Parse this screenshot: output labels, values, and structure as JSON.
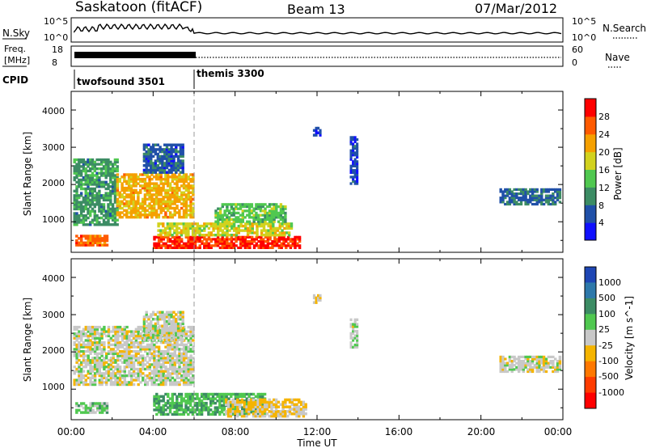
{
  "header": {
    "station": "Saskatoon (fitACF)",
    "beam": "Beam 13",
    "date": "07/Mar/2012"
  },
  "summary_panels": {
    "nsky_label": "N.Sky",
    "nsky_ticks": [
      "10^5",
      "10^0"
    ],
    "nsearch_label": "N.Search",
    "nsearch_ticks": [
      "10^5",
      "10^0"
    ],
    "freq_label_line1": "Freq.",
    "freq_label_line2": "[MHz]",
    "freq_ticks": [
      "18",
      "8"
    ],
    "nave_label": "Nave",
    "nave_ticks": [
      "60",
      "0"
    ],
    "cpid_label": "CPID",
    "cpid_modes": [
      {
        "name": "twofsound 3501",
        "start_hour": 0,
        "end_hour": 6
      },
      {
        "name": "themis 3300",
        "start_hour": 6,
        "end_hour": 24
      }
    ]
  },
  "axes": {
    "ylabel": "Slant Range [km]",
    "xlabel": "Time UT",
    "x_ticks": [
      "00:00",
      "04:00",
      "08:00",
      "12:00",
      "16:00",
      "20:00",
      "00:00"
    ],
    "y_ticks": [
      "1000",
      "2000",
      "3000",
      "4000"
    ]
  },
  "colorbars": {
    "power": {
      "label": "Power [dB]",
      "ticks": [
        "4",
        "8",
        "12",
        "16",
        "20",
        "24",
        "28"
      ],
      "colors": [
        "#1010ff",
        "#2050a8",
        "#3c8c64",
        "#50c850",
        "#d2d21e",
        "#f5a000",
        "#ff5a00",
        "#ff0000"
      ]
    },
    "velocity": {
      "label": "Velocity [m s^-1]",
      "ticks": [
        "1000",
        "500",
        "100",
        "25",
        "-25",
        "-100",
        "-500",
        "-1000"
      ],
      "colors": [
        "#1e46b4",
        "#2d78aa",
        "#3c8c64",
        "#50c850",
        "#c8c8c8",
        "#f5b400",
        "#ff7800",
        "#ff3c00",
        "#ff0000"
      ]
    }
  },
  "chart_data": [
    {
      "type": "heatmap",
      "title": "Power",
      "xlabel": "Time UT",
      "ylabel": "Slant Range [km]",
      "xlim_hours": [
        0,
        24
      ],
      "ylim_km": [
        180,
        4500
      ],
      "colorbar_range": [
        0,
        30
      ],
      "regions": [
        {
          "t0": 0.2,
          "t1": 1.8,
          "r0": 350,
          "r1": 650,
          "value": 24
        },
        {
          "t0": 0.1,
          "t1": 2.3,
          "r0": 900,
          "r1": 2700,
          "value": 10
        },
        {
          "t0": 2.2,
          "t1": 6.0,
          "r0": 1100,
          "r1": 2300,
          "value": 20
        },
        {
          "t0": 3.5,
          "t1": 5.5,
          "r0": 2300,
          "r1": 3100,
          "value": 6
        },
        {
          "t0": 4.0,
          "t1": 11.2,
          "r0": 280,
          "r1": 620,
          "value": 27
        },
        {
          "t0": 4.2,
          "t1": 10.8,
          "r0": 620,
          "r1": 980,
          "value": 17
        },
        {
          "t0": 7.0,
          "t1": 10.5,
          "r0": 980,
          "r1": 1500,
          "value": 13
        },
        {
          "t0": 11.8,
          "t1": 12.2,
          "r0": 3300,
          "r1": 3550,
          "value": 4
        },
        {
          "t0": 13.6,
          "t1": 14.0,
          "r0": 2000,
          "r1": 3300,
          "value": 5
        },
        {
          "t0": 20.9,
          "t1": 23.9,
          "r0": 1450,
          "r1": 1900,
          "value": 7
        }
      ]
    },
    {
      "type": "heatmap",
      "title": "Velocity",
      "xlabel": "Time UT",
      "ylabel": "Slant Range [km]",
      "xlim_hours": [
        0,
        24
      ],
      "ylim_km": [
        180,
        4500
      ],
      "colorbar_range": [
        -1000,
        1000
      ],
      "regions": [
        {
          "t0": 0.2,
          "t1": 1.8,
          "r0": 350,
          "r1": 650,
          "value": 200
        },
        {
          "t0": 0.1,
          "t1": 6.0,
          "r0": 1100,
          "r1": 2700,
          "value": 0
        },
        {
          "t0": 3.5,
          "t1": 5.5,
          "r0": 2300,
          "r1": 3100,
          "value": 0
        },
        {
          "t0": 4.0,
          "t1": 9.5,
          "r0": 300,
          "r1": 900,
          "value": 300
        },
        {
          "t0": 7.5,
          "t1": 11.5,
          "r0": 250,
          "r1": 750,
          "value": -150
        },
        {
          "t0": 11.8,
          "t1": 12.2,
          "r0": 3300,
          "r1": 3550,
          "value": -120
        },
        {
          "t0": 13.6,
          "t1": 14.0,
          "r0": 2100,
          "r1": 2900,
          "value": 60
        },
        {
          "t0": 20.9,
          "t1": 23.9,
          "r0": 1450,
          "r1": 1900,
          "value": 0
        }
      ]
    }
  ]
}
